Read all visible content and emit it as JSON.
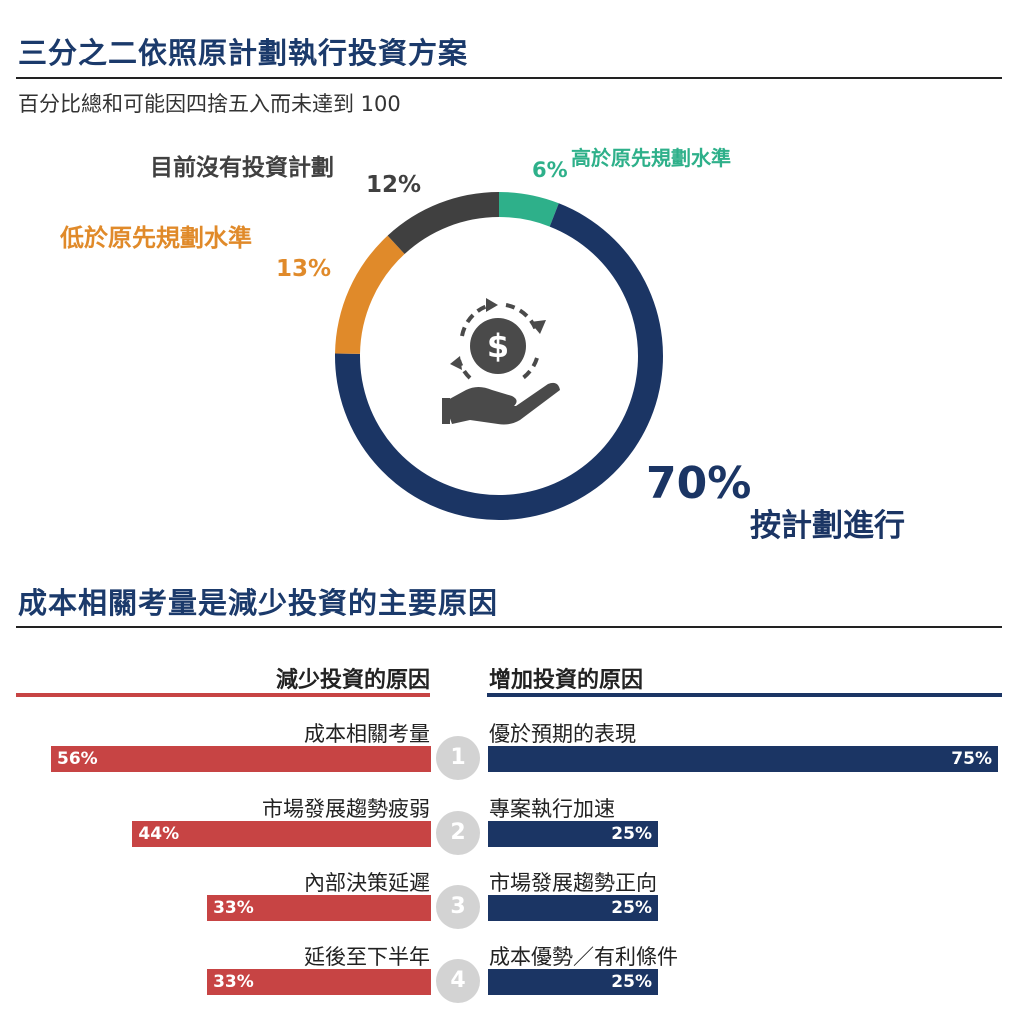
{
  "header": {
    "title": "三分之二依照原計劃執行投資方案",
    "subtitle": "百分比總和可能因四捨五入而未達到 100"
  },
  "section2": {
    "title": "成本相關考量是減少投資的主要原因"
  },
  "chart_data": [
    {
      "type": "pie",
      "variant": "donut",
      "slices": [
        {
          "label": "高於原先規劃水準",
          "value": 6,
          "value_label": "6%",
          "color": "#2eb08a"
        },
        {
          "label": "按計劃進行",
          "value": 70,
          "value_label": "70%",
          "color": "#1b3564"
        },
        {
          "label": "低於原先規劃水準",
          "value": 13,
          "value_label": "13%",
          "color": "#e08a2a"
        },
        {
          "label": "目前沒有投資計劃",
          "value": 12,
          "value_label": "12%",
          "color": "#404040"
        }
      ],
      "center_icon": "money-hand-cycle-icon"
    },
    {
      "type": "bar",
      "orientation": "horizontal",
      "left_header": "減少投資的原因",
      "right_header": "增加投資的原因",
      "left_color": "#c74444",
      "right_color": "#1b3564",
      "x_max": 75,
      "rows": [
        {
          "rank": "1",
          "left_label": "成本相關考量",
          "left_value": 56,
          "left_text": "56%",
          "right_label": "優於預期的表現",
          "right_value": 75,
          "right_text": "75%"
        },
        {
          "rank": "2",
          "left_label": "市場發展趨勢疲弱",
          "left_value": 44,
          "left_text": "44%",
          "right_label": "專案執行加速",
          "right_value": 25,
          "right_text": "25%"
        },
        {
          "rank": "3",
          "left_label": "內部決策延遲",
          "left_value": 33,
          "left_text": "33%",
          "right_label": "市場發展趨勢正向",
          "right_value": 25,
          "right_text": "25%"
        },
        {
          "rank": "4",
          "left_label": "延後至下半年",
          "left_value": 33,
          "left_text": "33%",
          "right_label": "成本優勢／有利條件",
          "right_value": 25,
          "right_text": "25%"
        }
      ]
    }
  ]
}
